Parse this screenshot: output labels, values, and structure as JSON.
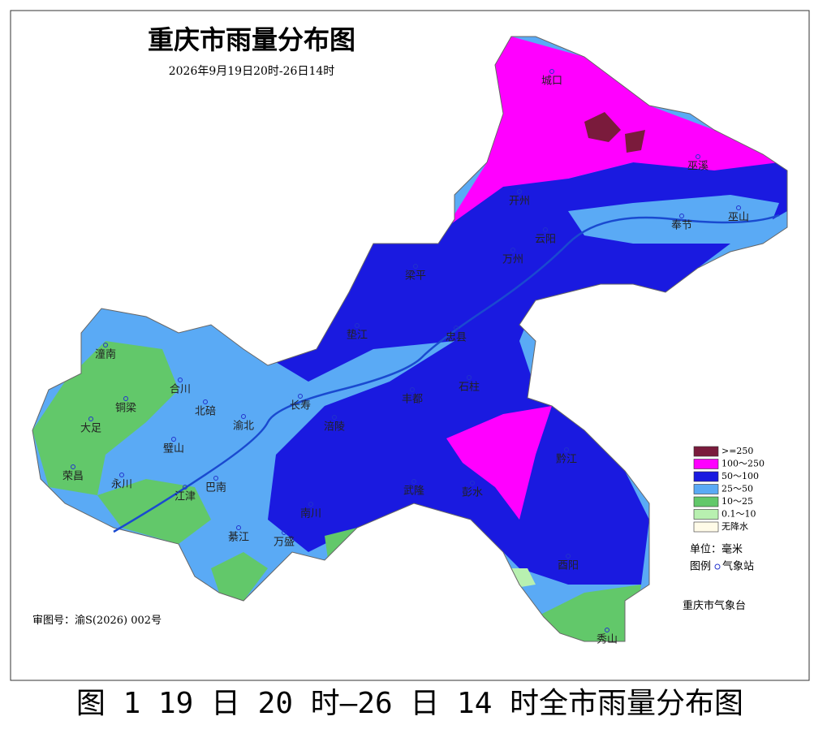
{
  "title": "重庆市雨量分布图",
  "subtitle": "2026年9月19日20时-26日14时",
  "places": [
    "城口",
    "巫溪",
    "开州",
    "云阳",
    "奉节",
    "巫山",
    "万州",
    "梁平",
    "垫江",
    "忠县",
    "石柱",
    "丰都",
    "长寿",
    "涪陵",
    "潼南",
    "合川",
    "铜梁",
    "大足",
    "荣昌",
    "永川",
    "璧山",
    "北碚",
    "渝北",
    "江津",
    "巴南",
    "綦江",
    "万盛",
    "南川",
    "武隆",
    "彭水",
    "黔江",
    "酉阳",
    "秀山"
  ],
  "legend": {
    "items": [
      {
        "label": ">=250",
        "color": "#7a1b3c"
      },
      {
        "label": "100～250",
        "color": "#ff00ff"
      },
      {
        "label": "50～100",
        "color": "#1a1ae0"
      },
      {
        "label": "25～50",
        "color": "#5aaaf5"
      },
      {
        "label": "10～25",
        "color": "#62c86a"
      },
      {
        "label": "0.1～10",
        "color": "#b8f0b0"
      },
      {
        "label": "无降水",
        "color": "#fffbe8"
      }
    ],
    "unit": "单位：毫米",
    "legend_word": "图例",
    "station": "气象站"
  },
  "review_number": "审图号：渝S(2026) 002号",
  "agency": "重庆市气象台",
  "caption": "图 1  19 日 20 时—26 日 14 时全市雨量分布图"
}
